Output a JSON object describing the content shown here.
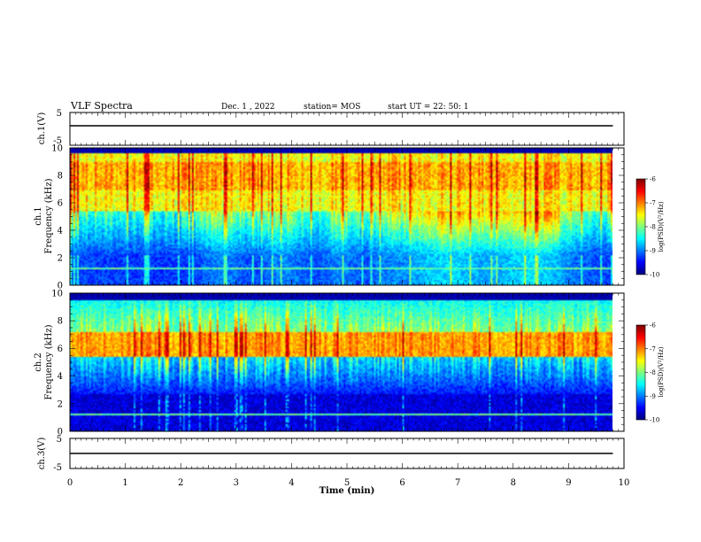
{
  "header": {
    "title": "VLF Spectra",
    "date": "Dec. 1 , 2022",
    "station": "station= MOS",
    "start": "start  UT =  22: 50: 1"
  },
  "chart_data": [
    {
      "type": "line",
      "name": "ch1-voltage",
      "ylabel": "ch.1(V)",
      "ylim": [
        -5,
        5
      ],
      "yticks": [
        "5",
        "-5"
      ],
      "xlim": [
        0,
        10
      ],
      "x": [
        0,
        9.8
      ],
      "y": [
        0,
        0
      ]
    },
    {
      "type": "heatmap",
      "name": "ch1-spectrogram",
      "ylabel": "ch.1",
      "ylabel2": "Frequency (kHz)",
      "ylim": [
        0,
        10
      ],
      "yticks": [
        "0",
        "2",
        "4",
        "6",
        "8",
        "10"
      ],
      "xlim": [
        0,
        10
      ],
      "data_xmax": 9.8,
      "colorbar": {
        "label": "log(PSD)(V²/Hz)",
        "ticks": [
          "-6",
          "-7",
          "-8",
          "-9",
          "-10"
        ],
        "range": [
          -10,
          -6
        ]
      }
    },
    {
      "type": "heatmap",
      "name": "ch2-spectrogram",
      "ylabel": "ch.2",
      "ylabel2": "Frequency (kHz)",
      "ylim": [
        0,
        10
      ],
      "yticks": [
        "0",
        "2",
        "4",
        "6",
        "8",
        "10"
      ],
      "xlim": [
        0,
        10
      ],
      "data_xmax": 9.8,
      "colorbar": {
        "label": "log(PSD)(V²/Hz)",
        "ticks": [
          "-6",
          "-7",
          "-8",
          "-9",
          "-10"
        ],
        "range": [
          -10,
          -6
        ]
      }
    },
    {
      "type": "line",
      "name": "ch3-voltage",
      "ylabel": "ch.3(V)",
      "ylim": [
        -5,
        5
      ],
      "yticks": [
        "5",
        "-5"
      ],
      "xlim": [
        0,
        10
      ],
      "x": [
        0,
        9.8
      ],
      "y": [
        0,
        0
      ],
      "xlabel": "Time  (min)",
      "xticks": [
        "0",
        "1",
        "2",
        "3",
        "4",
        "5",
        "6",
        "7",
        "8",
        "9",
        "10"
      ]
    }
  ]
}
